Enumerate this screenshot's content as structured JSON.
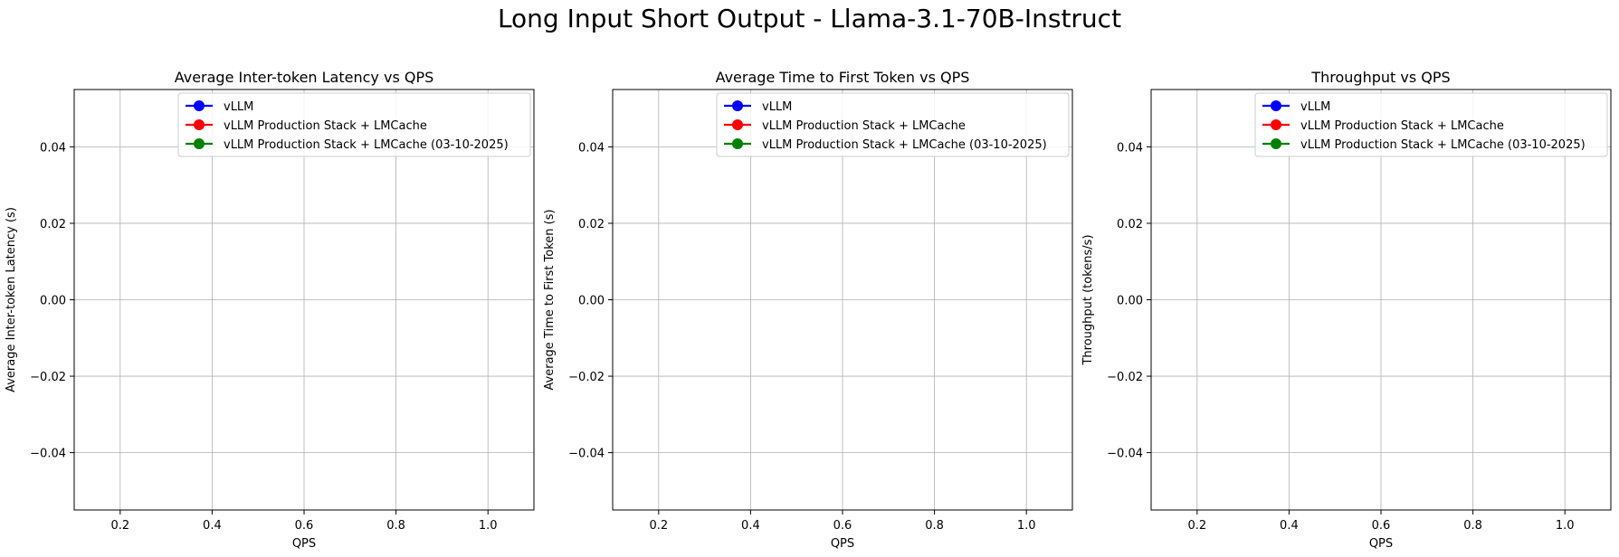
{
  "suptitle": "Long Input Short Output - Llama-3.1-70B-Instruct",
  "chart_data": [
    {
      "type": "line",
      "title": "Average Inter-token Latency vs QPS",
      "xlabel": "QPS",
      "ylabel": "Average Inter-token Latency (s)",
      "xlim": [
        0.1,
        1.1
      ],
      "ylim": [
        -0.055,
        0.055
      ],
      "xticks": [
        0.2,
        0.4,
        0.6,
        0.8,
        1.0
      ],
      "xtick_labels": [
        "0.2",
        "0.4",
        "0.6",
        "0.8",
        "1.0"
      ],
      "yticks": [
        -0.04,
        -0.02,
        0.0,
        0.02,
        0.04
      ],
      "ytick_labels": [
        "−0.04",
        "−0.02",
        "0.00",
        "0.02",
        "0.04"
      ],
      "grid": true,
      "legend_position": "upper right",
      "series": [
        {
          "name": "vLLM",
          "color": "#0000ff",
          "marker": "circle",
          "x": [],
          "y": []
        },
        {
          "name": "vLLM Production Stack + LMCache",
          "color": "#ff0000",
          "marker": "circle",
          "x": [],
          "y": []
        },
        {
          "name": "vLLM Production Stack + LMCache (03-10-2025)",
          "color": "#008000",
          "marker": "circle",
          "x": [],
          "y": []
        }
      ]
    },
    {
      "type": "line",
      "title": "Average Time to First Token vs QPS",
      "xlabel": "QPS",
      "ylabel": "Average Time to First Token (s)",
      "xlim": [
        0.1,
        1.1
      ],
      "ylim": [
        -0.055,
        0.055
      ],
      "xticks": [
        0.2,
        0.4,
        0.6,
        0.8,
        1.0
      ],
      "xtick_labels": [
        "0.2",
        "0.4",
        "0.6",
        "0.8",
        "1.0"
      ],
      "yticks": [
        -0.04,
        -0.02,
        0.0,
        0.02,
        0.04
      ],
      "ytick_labels": [
        "−0.04",
        "−0.02",
        "0.00",
        "0.02",
        "0.04"
      ],
      "grid": true,
      "legend_position": "upper right",
      "series": [
        {
          "name": "vLLM",
          "color": "#0000ff",
          "marker": "circle",
          "x": [],
          "y": []
        },
        {
          "name": "vLLM Production Stack + LMCache",
          "color": "#ff0000",
          "marker": "circle",
          "x": [],
          "y": []
        },
        {
          "name": "vLLM Production Stack + LMCache (03-10-2025)",
          "color": "#008000",
          "marker": "circle",
          "x": [],
          "y": []
        }
      ]
    },
    {
      "type": "line",
      "title": "Throughput vs QPS",
      "xlabel": "QPS",
      "ylabel": "Throughput (tokens/s)",
      "xlim": [
        0.1,
        1.1
      ],
      "ylim": [
        -0.055,
        0.055
      ],
      "xticks": [
        0.2,
        0.4,
        0.6,
        0.8,
        1.0
      ],
      "xtick_labels": [
        "0.2",
        "0.4",
        "0.6",
        "0.8",
        "1.0"
      ],
      "yticks": [
        -0.04,
        -0.02,
        0.0,
        0.02,
        0.04
      ],
      "ytick_labels": [
        "−0.04",
        "−0.02",
        "0.00",
        "0.02",
        "0.04"
      ],
      "grid": true,
      "legend_position": "upper right",
      "series": [
        {
          "name": "vLLM",
          "color": "#0000ff",
          "marker": "circle",
          "x": [],
          "y": []
        },
        {
          "name": "vLLM Production Stack + LMCache",
          "color": "#ff0000",
          "marker": "circle",
          "x": [],
          "y": []
        },
        {
          "name": "vLLM Production Stack + LMCache (03-10-2025)",
          "color": "#008000",
          "marker": "circle",
          "x": [],
          "y": []
        }
      ]
    }
  ]
}
